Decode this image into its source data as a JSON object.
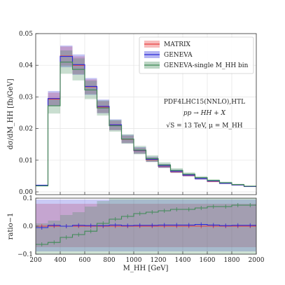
{
  "chart_data": [
    {
      "type": "histogram",
      "panel": "main",
      "ylabel": "dσ/dM_HH [fb/GeV]",
      "xlim": [
        200,
        2000
      ],
      "ylim": [
        0,
        0.05
      ],
      "yticks": [
        "0.00",
        "0.01",
        "0.02",
        "0.03",
        "0.04",
        "0.05"
      ],
      "grid": true,
      "legend_position": "top-right",
      "bin_edges": [
        200,
        300,
        400,
        500,
        600,
        700,
        800,
        900,
        1000,
        1100,
        1200,
        1300,
        1400,
        1500,
        1600,
        1700,
        1800,
        1900,
        2000
      ],
      "series": [
        {
          "name": "MATRIX",
          "color": "#e83c3c",
          "values": [
            0.0021,
            0.0293,
            0.0429,
            0.04,
            0.0332,
            0.0268,
            0.021,
            0.0166,
            0.013,
            0.0102,
            0.0081,
            0.0064,
            0.0052,
            0.0042,
            0.0033,
            0.0027,
            0.0022,
            0.0017
          ],
          "band_rel": [
            0.07,
            0.07,
            0.07,
            0.07,
            0.07,
            0.07,
            0.07,
            0.07,
            0.07,
            0.07,
            0.07,
            0.07,
            0.07,
            0.07,
            0.07,
            0.07,
            0.07,
            0.07
          ]
        },
        {
          "name": "GENEVA",
          "color": "#2b2bd9",
          "values": [
            0.0021,
            0.0295,
            0.0428,
            0.0402,
            0.0333,
            0.027,
            0.0212,
            0.0167,
            0.0131,
            0.0103,
            0.0082,
            0.0065,
            0.0053,
            0.0042,
            0.0034,
            0.0027,
            0.0022,
            0.0017
          ],
          "band_rel": [
            0.08,
            0.08,
            0.08,
            0.08,
            0.08,
            0.08,
            0.08,
            0.08,
            0.08,
            0.08,
            0.08,
            0.08,
            0.08,
            0.08,
            0.08,
            0.08,
            0.08,
            0.08
          ]
        },
        {
          "name": "GENEVA-single M_HH bin",
          "color": "#3e8a55",
          "values": [
            0.0019,
            0.0272,
            0.041,
            0.0387,
            0.0322,
            0.0265,
            0.0209,
            0.0167,
            0.0132,
            0.0105,
            0.0085,
            0.0068,
            0.0056,
            0.0045,
            0.0036,
            0.0029,
            0.0023,
            0.0018
          ],
          "band_rel": [
            0.09,
            0.09,
            0.09,
            0.09,
            0.09,
            0.09,
            0.09,
            0.09,
            0.1,
            0.1,
            0.1,
            0.1,
            0.1,
            0.1,
            0.1,
            0.1,
            0.1,
            0.1
          ]
        }
      ]
    },
    {
      "type": "histogram",
      "panel": "ratio",
      "ylabel": "ratio−1",
      "xlabel": "M_HH [GeV]",
      "xlim": [
        200,
        2000
      ],
      "ylim": [
        -0.1,
        0.1
      ],
      "yticks": [
        "−0.1",
        "0.0",
        "0.1"
      ],
      "xticks": [
        "200",
        "400",
        "600",
        "800",
        "1000",
        "1200",
        "1400",
        "1600",
        "1800",
        "2000"
      ],
      "grid": true,
      "bin_edges": [
        200,
        300,
        400,
        500,
        600,
        700,
        800,
        900,
        1000,
        1100,
        1200,
        1300,
        1400,
        1500,
        1600,
        1700,
        1800,
        1900,
        2000
      ],
      "series": [
        {
          "name": "MATRIX",
          "color": "#e83c3c",
          "values": [
            0,
            0,
            0,
            0,
            0,
            0,
            0,
            0,
            0,
            0,
            0,
            0,
            0,
            0,
            0,
            0,
            0,
            0
          ],
          "band_low": [
            -0.075,
            -0.075,
            -0.075,
            -0.075,
            -0.075,
            -0.075,
            -0.075,
            -0.075,
            -0.075,
            -0.075,
            -0.075,
            -0.075,
            -0.075,
            -0.075,
            -0.075,
            -0.075,
            -0.075,
            -0.075
          ],
          "band_high": [
            0.08,
            0.08,
            0.08,
            0.08,
            0.08,
            0.08,
            0.08,
            0.08,
            0.08,
            0.08,
            0.08,
            0.08,
            0.08,
            0.08,
            0.08,
            0.08,
            0.08,
            0.08
          ]
        },
        {
          "name": "GENEVA",
          "color": "#2b2bd9",
          "values": [
            -0.005,
            0.003,
            0.0,
            0.003,
            0.002,
            0.002,
            0.004,
            0.002,
            0.003,
            0.003,
            0.004,
            0.004,
            0.004,
            0.006,
            0.004,
            0.002,
            0.003,
            0.003
          ],
          "band_low": [
            -0.09,
            -0.09,
            -0.09,
            -0.09,
            -0.09,
            -0.09,
            -0.09,
            -0.09,
            -0.09,
            -0.09,
            -0.09,
            -0.09,
            -0.09,
            -0.09,
            -0.09,
            -0.09,
            -0.09,
            -0.09
          ],
          "band_high": [
            0.095,
            0.095,
            0.095,
            0.095,
            0.095,
            0.095,
            0.095,
            0.095,
            0.095,
            0.095,
            0.095,
            0.095,
            0.095,
            0.095,
            0.095,
            0.095,
            0.095,
            0.095
          ]
        },
        {
          "name": "GENEVA-single M_HH bin",
          "color": "#3e8a55",
          "values": [
            -0.065,
            -0.058,
            -0.04,
            -0.03,
            -0.018,
            0.01,
            0.025,
            0.035,
            0.045,
            0.05,
            0.055,
            0.06,
            0.06,
            0.065,
            0.07,
            0.07,
            0.075,
            0.075
          ],
          "band_low": [
            -0.1,
            -0.1,
            -0.1,
            -0.1,
            -0.1,
            -0.1,
            -0.1,
            -0.1,
            -0.1,
            -0.1,
            -0.1,
            -0.1,
            -0.1,
            -0.1,
            -0.1,
            -0.1,
            -0.1,
            -0.1
          ],
          "band_high": [
            0.01,
            0.02,
            0.04,
            0.05,
            0.07,
            0.09,
            0.1,
            0.1,
            0.1,
            0.1,
            0.1,
            0.1,
            0.1,
            0.1,
            0.1,
            0.1,
            0.1,
            0.1
          ]
        }
      ]
    }
  ],
  "legend": [
    {
      "label": "MATRIX",
      "color": "#e83c3c"
    },
    {
      "label": "GENEVA",
      "color": "#2b2bd9"
    },
    {
      "label": "GENEVA-single M_HH bin",
      "color": "#3e8a55"
    }
  ],
  "annotations": {
    "pdf": "PDF4LHC15(NNLO),HTL",
    "process": "pp → HH + X",
    "energy": "√S = 13 TeV, μ = M_HH"
  },
  "main_ylabel": "dσ/dM_HH [fb/GeV]",
  "ratio_ylabel": "ratio−1",
  "xlabel": "M_HH [GeV]"
}
